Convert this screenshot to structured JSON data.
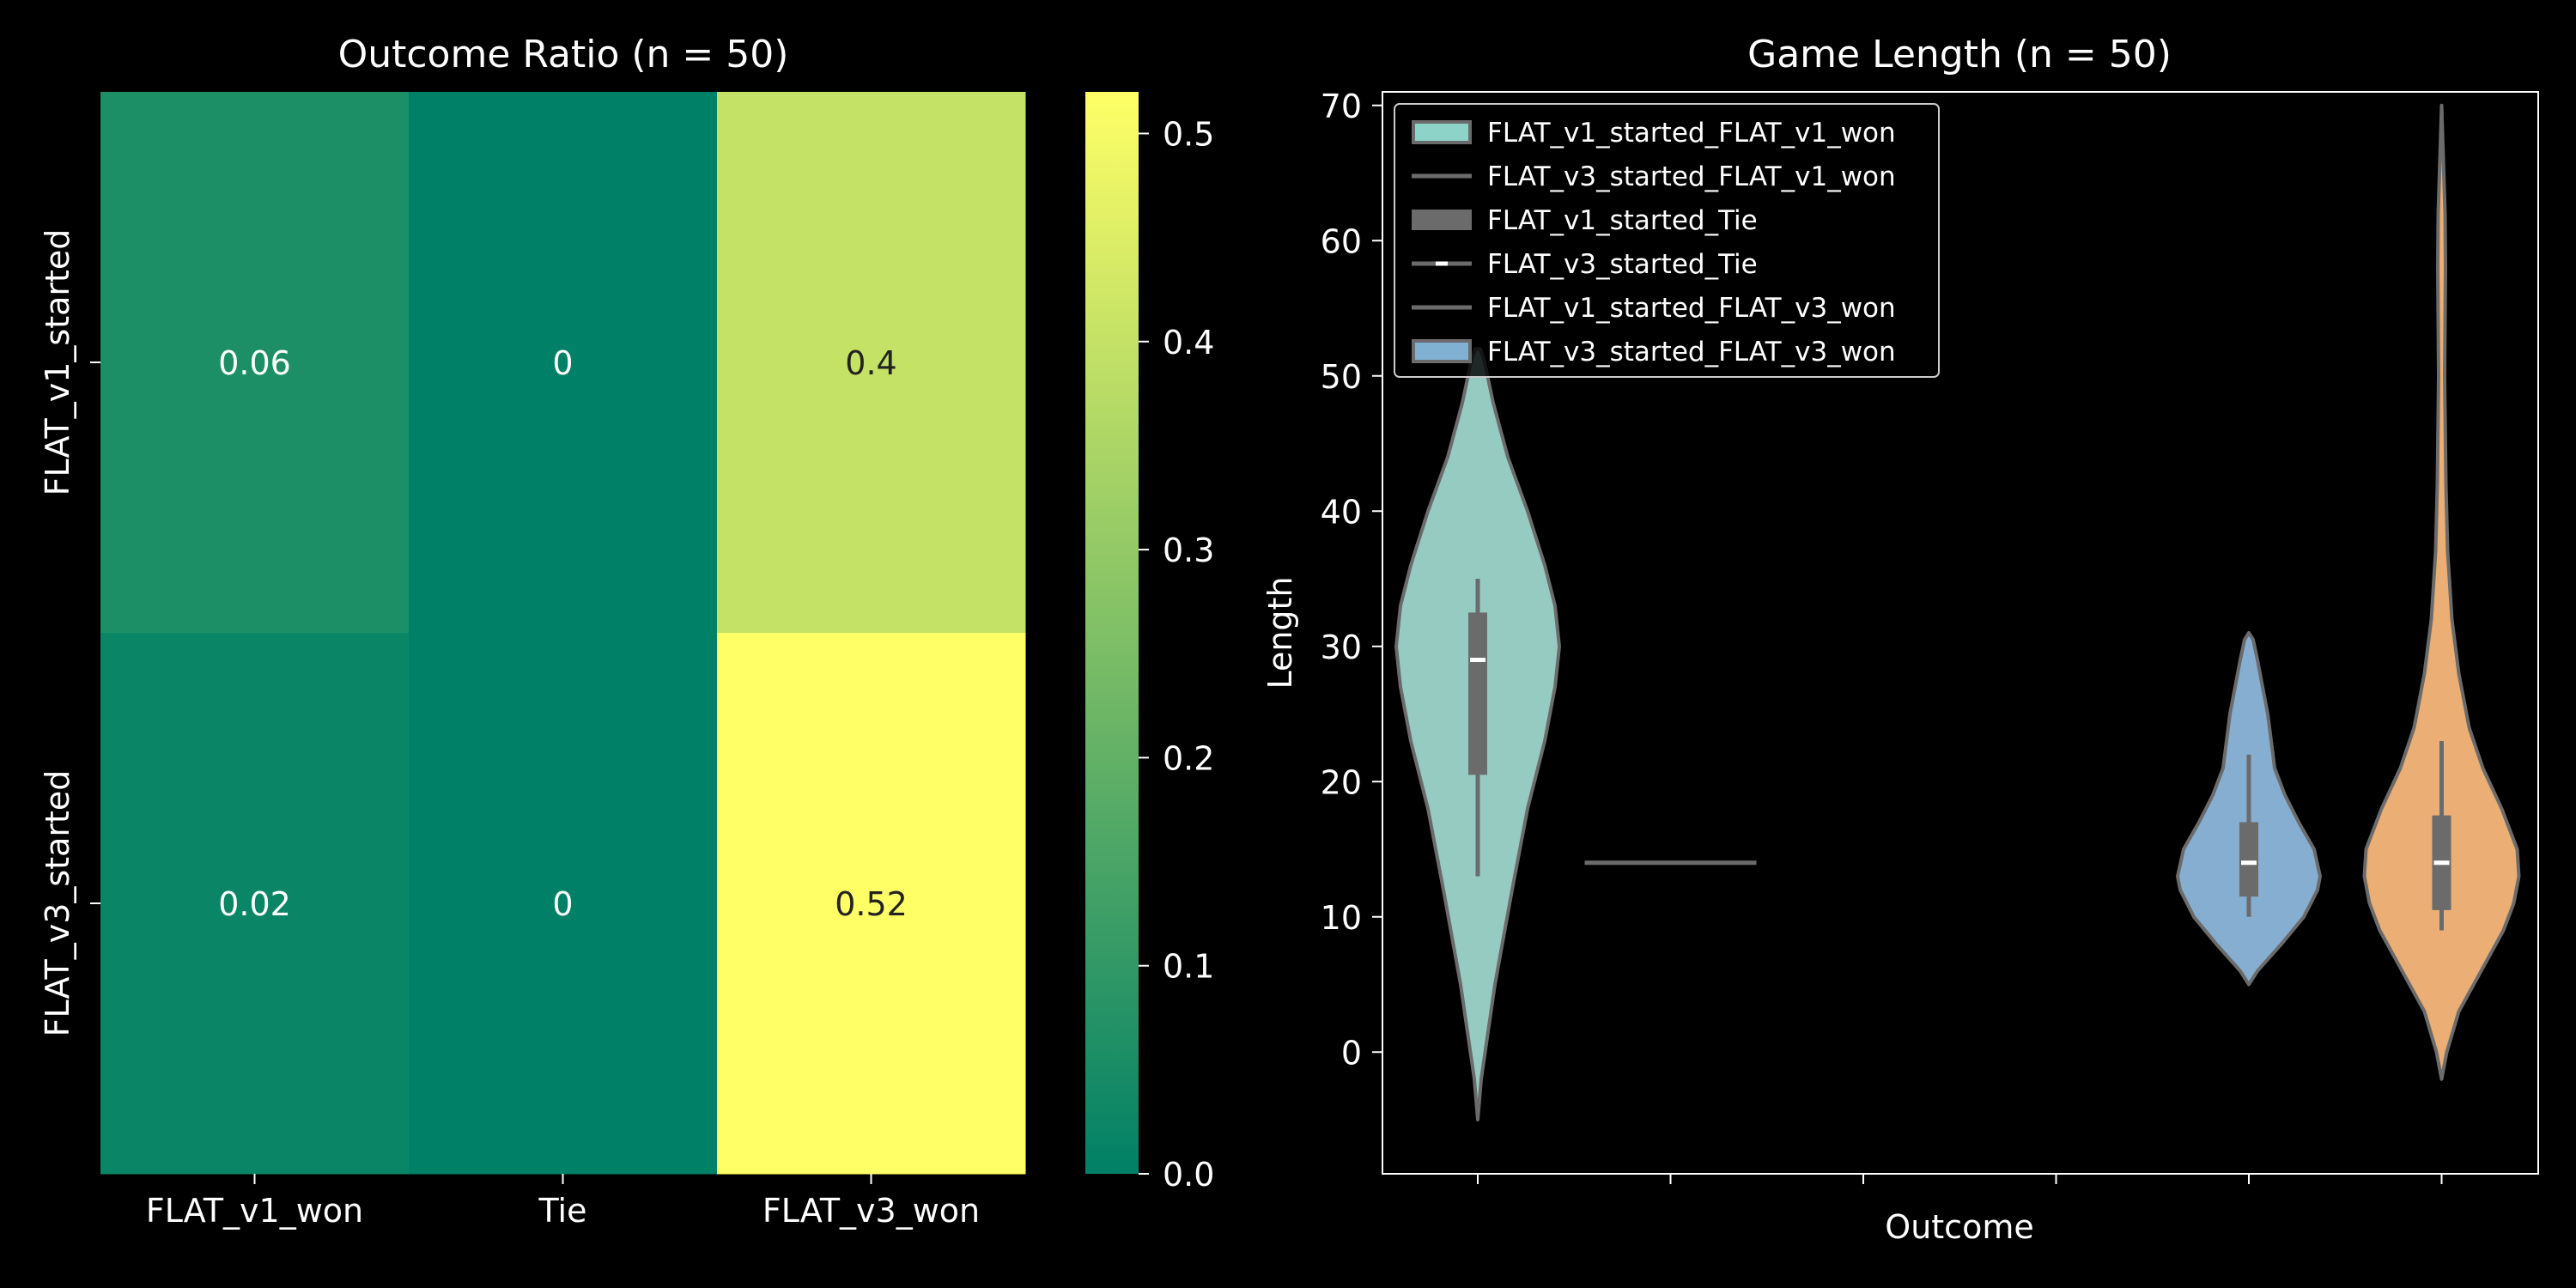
{
  "chart_data": [
    {
      "type": "heatmap",
      "title": "Outcome Ratio (n = 50)",
      "rows": [
        "FLAT_v1_started",
        "FLAT_v3_started"
      ],
      "columns": [
        "FLAT_v1_won",
        "Tie",
        "FLAT_v3_won"
      ],
      "values": [
        [
          0.06,
          0,
          0.4
        ],
        [
          0.02,
          0,
          0.52
        ]
      ],
      "cell_labels": [
        [
          "0.06",
          "0",
          "0.4"
        ],
        [
          "0.02",
          "0",
          "0.52"
        ]
      ],
      "colormap": "summer",
      "colorbar": {
        "range": [
          0,
          0.52
        ],
        "ticks": [
          0.0,
          0.1,
          0.2,
          0.3,
          0.4,
          0.5
        ],
        "tick_labels": [
          "0.0",
          "0.1",
          "0.2",
          "0.3",
          "0.4",
          "0.5"
        ]
      },
      "colors": {
        "low": "#008066",
        "high": "#ffff66",
        "label_dark": "#222222",
        "label_light": "#ffffff"
      }
    },
    {
      "type": "violin",
      "title": "Game Length (n = 50)",
      "xlabel": "Outcome",
      "ylabel": "Length",
      "ylim": [
        -9,
        71
      ],
      "yticks": [
        0,
        10,
        20,
        30,
        40,
        50,
        60,
        70
      ],
      "x_positions": 6,
      "legend": {
        "placement": "upper-left",
        "entries": [
          {
            "label": "FLAT_v1_started_FLAT_v1_won",
            "marker": "patch",
            "color": "#8dd3c7"
          },
          {
            "label": "FLAT_v3_started_FLAT_v1_won",
            "marker": "line",
            "color": "#6b6b6b"
          },
          {
            "label": "FLAT_v1_started_Tie",
            "marker": "thick",
            "color": "#6b6b6b"
          },
          {
            "label": "FLAT_v3_started_Tie",
            "marker": "median",
            "color": "#6b6b6b"
          },
          {
            "label": "FLAT_v1_started_FLAT_v3_won",
            "marker": "line",
            "color": "#6b6b6b"
          },
          {
            "label": "FLAT_v3_started_FLAT_v3_won",
            "marker": "patch",
            "color": "#80b1d3"
          }
        ]
      },
      "series": [
        {
          "name": "FLAT_v1_started_FLAT_v1_won",
          "position": 0,
          "color": "#96cbc2",
          "profile": [
            [
              -5,
              0
            ],
            [
              -2,
              0.04
            ],
            [
              5,
              0.2
            ],
            [
              12,
              0.4
            ],
            [
              18,
              0.58
            ],
            [
              23,
              0.78
            ],
            [
              27,
              0.9
            ],
            [
              30,
              0.95
            ],
            [
              33,
              0.9
            ],
            [
              36,
              0.78
            ],
            [
              40,
              0.58
            ],
            [
              44,
              0.35
            ],
            [
              48,
              0.18
            ],
            [
              51,
              0.08
            ],
            [
              52,
              0.03
            ]
          ],
          "whisker": [
            13,
            35
          ],
          "box": [
            20.5,
            32.5
          ],
          "median": 29
        },
        {
          "name": "FLAT_v3_started_FLAT_v1_won",
          "position": 1,
          "color": "#6b6b6b",
          "line": 14
        },
        {
          "name": "FLAT_v1_started_FLAT_v3_won",
          "position": 4,
          "color": "#86aed1",
          "profile": [
            [
              5,
              0
            ],
            [
              6,
              0.1
            ],
            [
              8,
              0.38
            ],
            [
              10,
              0.64
            ],
            [
              12,
              0.8
            ],
            [
              13,
              0.83
            ],
            [
              15,
              0.76
            ],
            [
              17,
              0.58
            ],
            [
              19,
              0.42
            ],
            [
              21,
              0.3
            ],
            [
              23,
              0.26
            ],
            [
              25,
              0.22
            ],
            [
              27,
              0.16
            ],
            [
              29,
              0.1
            ],
            [
              30.5,
              0.05
            ],
            [
              31,
              0
            ]
          ],
          "whisker": [
            10,
            22
          ],
          "box": [
            11.5,
            17
          ],
          "median": 14
        },
        {
          "name": "FLAT_v3_started_FLAT_v3_won",
          "position": 5,
          "color": "#ebae74",
          "profile": [
            [
              -2,
              0
            ],
            [
              0,
              0.06
            ],
            [
              3,
              0.2
            ],
            [
              6,
              0.46
            ],
            [
              9,
              0.72
            ],
            [
              11,
              0.84
            ],
            [
              13,
              0.9
            ],
            [
              15,
              0.88
            ],
            [
              18,
              0.7
            ],
            [
              21,
              0.48
            ],
            [
              24,
              0.32
            ],
            [
              28,
              0.2
            ],
            [
              32,
              0.12
            ],
            [
              37,
              0.07
            ],
            [
              42,
              0.05
            ],
            [
              50,
              0.035
            ],
            [
              58,
              0.045
            ],
            [
              62,
              0.04
            ],
            [
              67,
              0.015
            ],
            [
              70,
              0
            ]
          ],
          "whisker": [
            9,
            23
          ],
          "box": [
            10.5,
            17.5
          ],
          "median": 14
        }
      ]
    }
  ]
}
